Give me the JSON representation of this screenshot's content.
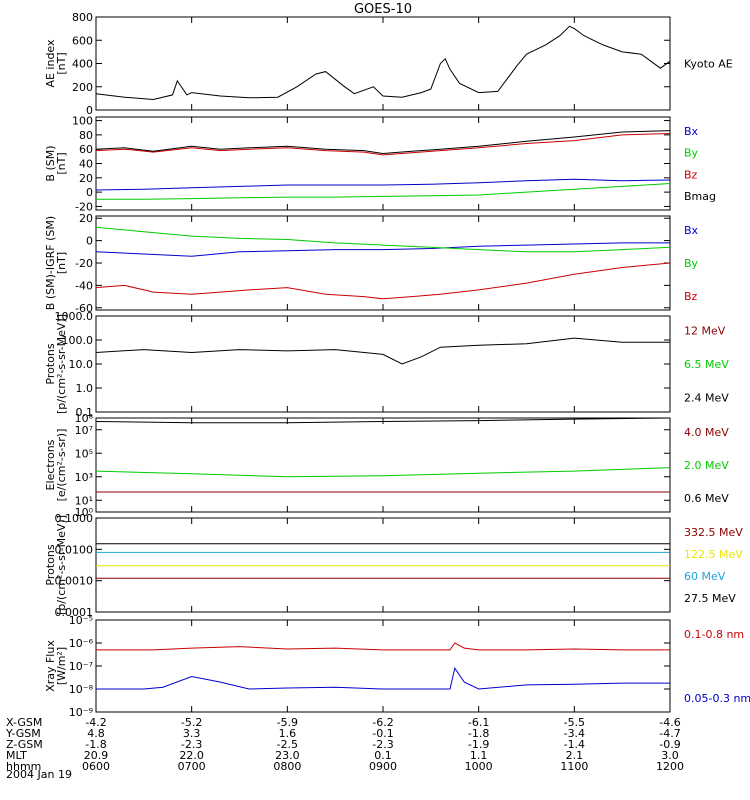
{
  "title": "GOES-10",
  "date": "2004 Jan 19",
  "hour_ticks": [
    "0600",
    "0700",
    "0800",
    "0900",
    "1000",
    "1100",
    "1200"
  ],
  "ephemeris": [
    {
      "label": "X-GSM",
      "values": [
        "-4.2",
        "-5.2",
        "-5.9",
        "-6.2",
        "-6.1",
        "-5.5",
        "-4.6"
      ]
    },
    {
      "label": "Y-GSM",
      "values": [
        "4.8",
        "3.3",
        "1.6",
        "-0.1",
        "-1.8",
        "-3.4",
        "-4.7"
      ]
    },
    {
      "label": "Z-GSM",
      "values": [
        "-1.8",
        "-2.3",
        "-2.5",
        "-2.3",
        "-1.9",
        "-1.4",
        "-0.9"
      ]
    },
    {
      "label": "MLT",
      "values": [
        "20.9",
        "22.0",
        "23.0",
        "0.1",
        "1.1",
        "2.1",
        "3.0"
      ]
    },
    {
      "label": "hhmm",
      "values": [
        "0600",
        "0700",
        "0800",
        "0900",
        "1000",
        "1100",
        "1200"
      ]
    }
  ],
  "colors": {
    "black": "#000000",
    "red": "#cc0000",
    "green": "#00cc00",
    "blue": "#0000cc",
    "darkred": "#8b0000",
    "cyan": "#1e9fd8",
    "yellow": "#e8e800"
  },
  "chart_data": [
    {
      "id": "ae",
      "type": "line",
      "ylabel": [
        "AE index",
        "[nT]"
      ],
      "yscale": "linear",
      "ylim": [
        0,
        800
      ],
      "yticks": [
        {
          "v": 0,
          "label": "0"
        },
        {
          "v": 200,
          "label": "200"
        },
        {
          "v": 400,
          "label": "400"
        },
        {
          "v": 600,
          "label": "600"
        },
        {
          "v": 800,
          "label": "800"
        }
      ],
      "series": [
        {
          "name": "Kyoto AE",
          "color": "black",
          "x": [
            6.0,
            6.3,
            6.6,
            6.8,
            6.85,
            6.95,
            7.0,
            7.3,
            7.6,
            7.9,
            8.1,
            8.3,
            8.4,
            8.6,
            8.7,
            8.9,
            9.0,
            9.2,
            9.4,
            9.5,
            9.6,
            9.65,
            9.7,
            9.8,
            10.0,
            10.2,
            10.4,
            10.5,
            10.7,
            10.85,
            10.95,
            11.0,
            11.1,
            11.2,
            11.3,
            11.5,
            11.7,
            11.9,
            12.0
          ],
          "y": [
            140,
            110,
            90,
            130,
            250,
            130,
            150,
            120,
            105,
            110,
            200,
            310,
            330,
            200,
            140,
            200,
            120,
            110,
            150,
            180,
            400,
            440,
            350,
            230,
            150,
            160,
            380,
            480,
            560,
            640,
            720,
            700,
            640,
            600,
            560,
            500,
            480,
            360,
            420
          ]
        }
      ]
    },
    {
      "id": "b",
      "type": "line",
      "ylabel": [
        "B (SM)",
        "[nT]"
      ],
      "yscale": "linear",
      "ylim": [
        -25,
        105
      ],
      "yticks": [
        {
          "v": -20,
          "label": "-20"
        },
        {
          "v": 0,
          "label": "0"
        },
        {
          "v": 20,
          "label": "20"
        },
        {
          "v": 40,
          "label": "40"
        },
        {
          "v": 60,
          "label": "60"
        },
        {
          "v": 80,
          "label": "80"
        },
        {
          "v": 100,
          "label": "100"
        }
      ],
      "series": [
        {
          "name": "Bx",
          "color": "blue",
          "x": [
            6.0,
            6.5,
            7.0,
            7.5,
            8.0,
            8.5,
            9.0,
            9.5,
            10.0,
            10.5,
            11.0,
            11.5,
            12.0
          ],
          "y": [
            3,
            4,
            6,
            8,
            10,
            10,
            10,
            11,
            13,
            16,
            18,
            16,
            17
          ]
        },
        {
          "name": "By",
          "color": "green",
          "x": [
            6.0,
            6.5,
            7.0,
            7.5,
            8.0,
            8.5,
            9.0,
            9.5,
            10.0,
            10.5,
            11.0,
            11.5,
            12.0
          ],
          "y": [
            -10,
            -10,
            -9,
            -8,
            -7,
            -7,
            -6,
            -5,
            -4,
            0,
            4,
            8,
            12
          ]
        },
        {
          "name": "Bz",
          "color": "red",
          "x": [
            6.0,
            6.3,
            6.6,
            7.0,
            7.3,
            7.6,
            8.0,
            8.4,
            8.8,
            9.0,
            9.3,
            9.6,
            10.0,
            10.5,
            11.0,
            11.5,
            12.0
          ],
          "y": [
            58,
            60,
            56,
            62,
            58,
            60,
            62,
            58,
            56,
            52,
            55,
            58,
            62,
            68,
            72,
            80,
            82
          ]
        },
        {
          "name": "Bmag",
          "color": "black",
          "x": [
            6.0,
            6.3,
            6.6,
            7.0,
            7.3,
            7.6,
            8.0,
            8.4,
            8.8,
            9.0,
            9.3,
            9.6,
            10.0,
            10.5,
            11.0,
            11.5,
            12.0
          ],
          "y": [
            60,
            62,
            57,
            64,
            60,
            62,
            64,
            60,
            58,
            54,
            57,
            60,
            64,
            71,
            77,
            84,
            86
          ]
        }
      ]
    },
    {
      "id": "bdiff",
      "type": "line",
      "ylabel": [
        "B (SM)-IGRF (SM)",
        "[nT]"
      ],
      "yscale": "linear",
      "ylim": [
        -62,
        22
      ],
      "yticks": [
        {
          "v": -60,
          "label": "-60"
        },
        {
          "v": -40,
          "label": "-40"
        },
        {
          "v": -20,
          "label": "-20"
        },
        {
          "v": 0,
          "label": "0"
        },
        {
          "v": 20,
          "label": "20"
        }
      ],
      "series": [
        {
          "name": "Bx",
          "color": "blue",
          "x": [
            6.0,
            6.5,
            7.0,
            7.5,
            8.0,
            8.5,
            9.0,
            9.5,
            10.0,
            10.5,
            11.0,
            11.5,
            12.0
          ],
          "y": [
            -10,
            -12,
            -14,
            -10,
            -9,
            -8,
            -8,
            -7,
            -5,
            -4,
            -3,
            -2,
            -2
          ]
        },
        {
          "name": "By",
          "color": "green",
          "x": [
            6.0,
            6.5,
            7.0,
            7.5,
            8.0,
            8.5,
            9.0,
            9.5,
            10.0,
            10.5,
            11.0,
            11.5,
            12.0
          ],
          "y": [
            12,
            8,
            4,
            2,
            1,
            -2,
            -4,
            -6,
            -8,
            -10,
            -10,
            -8,
            -6
          ]
        },
        {
          "name": "Bz",
          "color": "red",
          "x": [
            6.0,
            6.3,
            6.6,
            7.0,
            7.3,
            7.6,
            8.0,
            8.4,
            8.8,
            9.0,
            9.3,
            9.6,
            10.0,
            10.5,
            11.0,
            11.5,
            12.0
          ],
          "y": [
            -42,
            -40,
            -46,
            -48,
            -46,
            -44,
            -42,
            -48,
            -50,
            -52,
            -50,
            -48,
            -44,
            -38,
            -30,
            -24,
            -20
          ]
        }
      ]
    },
    {
      "id": "protons_lo",
      "type": "line",
      "ylabel": [
        "Protons",
        "[p/(cm²-s-sr-MeV)]"
      ],
      "yscale": "log",
      "ylim": [
        0.1,
        1000.0
      ],
      "yticks": [
        {
          "v": 0.1,
          "label": "0.1"
        },
        {
          "v": 1.0,
          "label": "1.0"
        },
        {
          "v": 10.0,
          "label": "10.0"
        },
        {
          "v": 100.0,
          "label": "100.0"
        },
        {
          "v": 1000.0,
          "label": "1000.0"
        }
      ],
      "series": [
        {
          "name": "12 MeV",
          "color": "darkred",
          "x": [],
          "y": []
        },
        {
          "name": "6.5 MeV",
          "color": "green",
          "x": [],
          "y": []
        },
        {
          "name": "2.4 MeV",
          "color": "black",
          "x": [
            6.0,
            6.5,
            7.0,
            7.5,
            8.0,
            8.5,
            9.0,
            9.2,
            9.4,
            9.6,
            10.0,
            10.5,
            11.0,
            11.5,
            12.0
          ],
          "y": [
            30,
            40,
            30,
            40,
            35,
            40,
            25,
            10,
            20,
            50,
            60,
            70,
            120,
            80,
            80
          ]
        }
      ]
    },
    {
      "id": "electrons",
      "type": "line",
      "ylabel": [
        "Electrons",
        "[e/(cm²-s-sr)]"
      ],
      "yscale": "log",
      "ylim": [
        1.0,
        100000000.0
      ],
      "yticks": [
        {
          "v": 1.0,
          "label": "10⁰"
        },
        {
          "v": 10.0,
          "label": "10¹"
        },
        {
          "v": 1000.0,
          "label": "10³"
        },
        {
          "v": 100000.0,
          "label": "10⁵"
        },
        {
          "v": 10000000.0,
          "label": "10⁷"
        },
        {
          "v": 100000000.0,
          "label": "10⁸"
        }
      ],
      "series": [
        {
          "name": "4.0 MeV",
          "color": "darkred",
          "x": [
            6.0,
            12.0
          ],
          "y": [
            50,
            50
          ]
        },
        {
          "name": "2.0 MeV",
          "color": "green",
          "x": [
            6.0,
            7.0,
            8.0,
            9.0,
            10.0,
            11.0,
            12.0
          ],
          "y": [
            3000,
            1800,
            1000,
            1200,
            2000,
            3000,
            6000
          ]
        },
        {
          "name": "0.6 MeV",
          "color": "black",
          "x": [
            6.0,
            7.0,
            8.0,
            9.0,
            10.0,
            11.0,
            12.0
          ],
          "y": [
            50000000.0,
            40000000.0,
            40000000.0,
            50000000.0,
            60000000.0,
            80000000.0,
            100000000.0
          ]
        }
      ]
    },
    {
      "id": "protons_hi",
      "type": "line",
      "ylabel": [
        "Protons",
        "[p/(cm²-s-sr-MeV)]"
      ],
      "yscale": "log",
      "ylim": [
        0.0001,
        0.1
      ],
      "yticks": [
        {
          "v": 0.0001,
          "label": "0.0001"
        },
        {
          "v": 0.001,
          "label": "0.0010"
        },
        {
          "v": 0.01,
          "label": "0.0100"
        },
        {
          "v": 0.1,
          "label": "0.1000"
        }
      ],
      "series": [
        {
          "name": "332.5 MeV",
          "color": "darkred",
          "x": [
            6.0,
            12.0
          ],
          "y": [
            0.0012,
            0.0012
          ]
        },
        {
          "name": "122.5 MeV",
          "color": "yellow",
          "x": [
            6.0,
            12.0
          ],
          "y": [
            0.003,
            0.003
          ]
        },
        {
          "name": "60 MeV",
          "color": "cyan",
          "x": [
            6.0,
            12.0
          ],
          "y": [
            0.008,
            0.008
          ]
        },
        {
          "name": "27.5 MeV",
          "color": "black",
          "x": [
            6.0,
            12.0
          ],
          "y": [
            0.015,
            0.015
          ]
        }
      ]
    },
    {
      "id": "xray",
      "type": "line",
      "ylabel": [
        "Xray Flux",
        "[W/m²]"
      ],
      "yscale": "log",
      "ylim": [
        1e-09,
        1e-05
      ],
      "yticks": [
        {
          "v": 1e-09,
          "label": "10⁻⁹"
        },
        {
          "v": 1e-08,
          "label": "10⁻⁸"
        },
        {
          "v": 1e-07,
          "label": "10⁻⁷"
        },
        {
          "v": 1e-06,
          "label": "10⁻⁶"
        },
        {
          "v": 1e-05,
          "label": "10⁻⁵"
        }
      ],
      "series": [
        {
          "name": "0.1-0.8 nm",
          "color": "red",
          "x": [
            6.0,
            6.6,
            7.0,
            7.5,
            8.0,
            8.5,
            9.0,
            9.5,
            9.7,
            9.75,
            9.85,
            10.0,
            10.5,
            11.0,
            11.5,
            12.0
          ],
          "y": [
            5e-07,
            5e-07,
            6e-07,
            7e-07,
            5.5e-07,
            6e-07,
            5e-07,
            5e-07,
            5e-07,
            1e-06,
            6e-07,
            5e-07,
            5e-07,
            5.5e-07,
            5e-07,
            5e-07
          ]
        },
        {
          "name": "0.05-0.3 nm",
          "color": "blue",
          "x": [
            6.0,
            6.5,
            6.7,
            7.0,
            7.3,
            7.6,
            8.0,
            8.5,
            9.0,
            9.5,
            9.7,
            9.75,
            9.85,
            10.0,
            10.5,
            11.0,
            11.5,
            12.0
          ],
          "y": [
            1e-08,
            1e-08,
            1.2e-08,
            3.5e-08,
            2e-08,
            1e-08,
            1.1e-08,
            1.2e-08,
            1e-08,
            1e-08,
            1e-08,
            8e-08,
            2e-08,
            1e-08,
            1.5e-08,
            1.6e-08,
            1.8e-08,
            1.8e-08
          ]
        }
      ]
    }
  ]
}
